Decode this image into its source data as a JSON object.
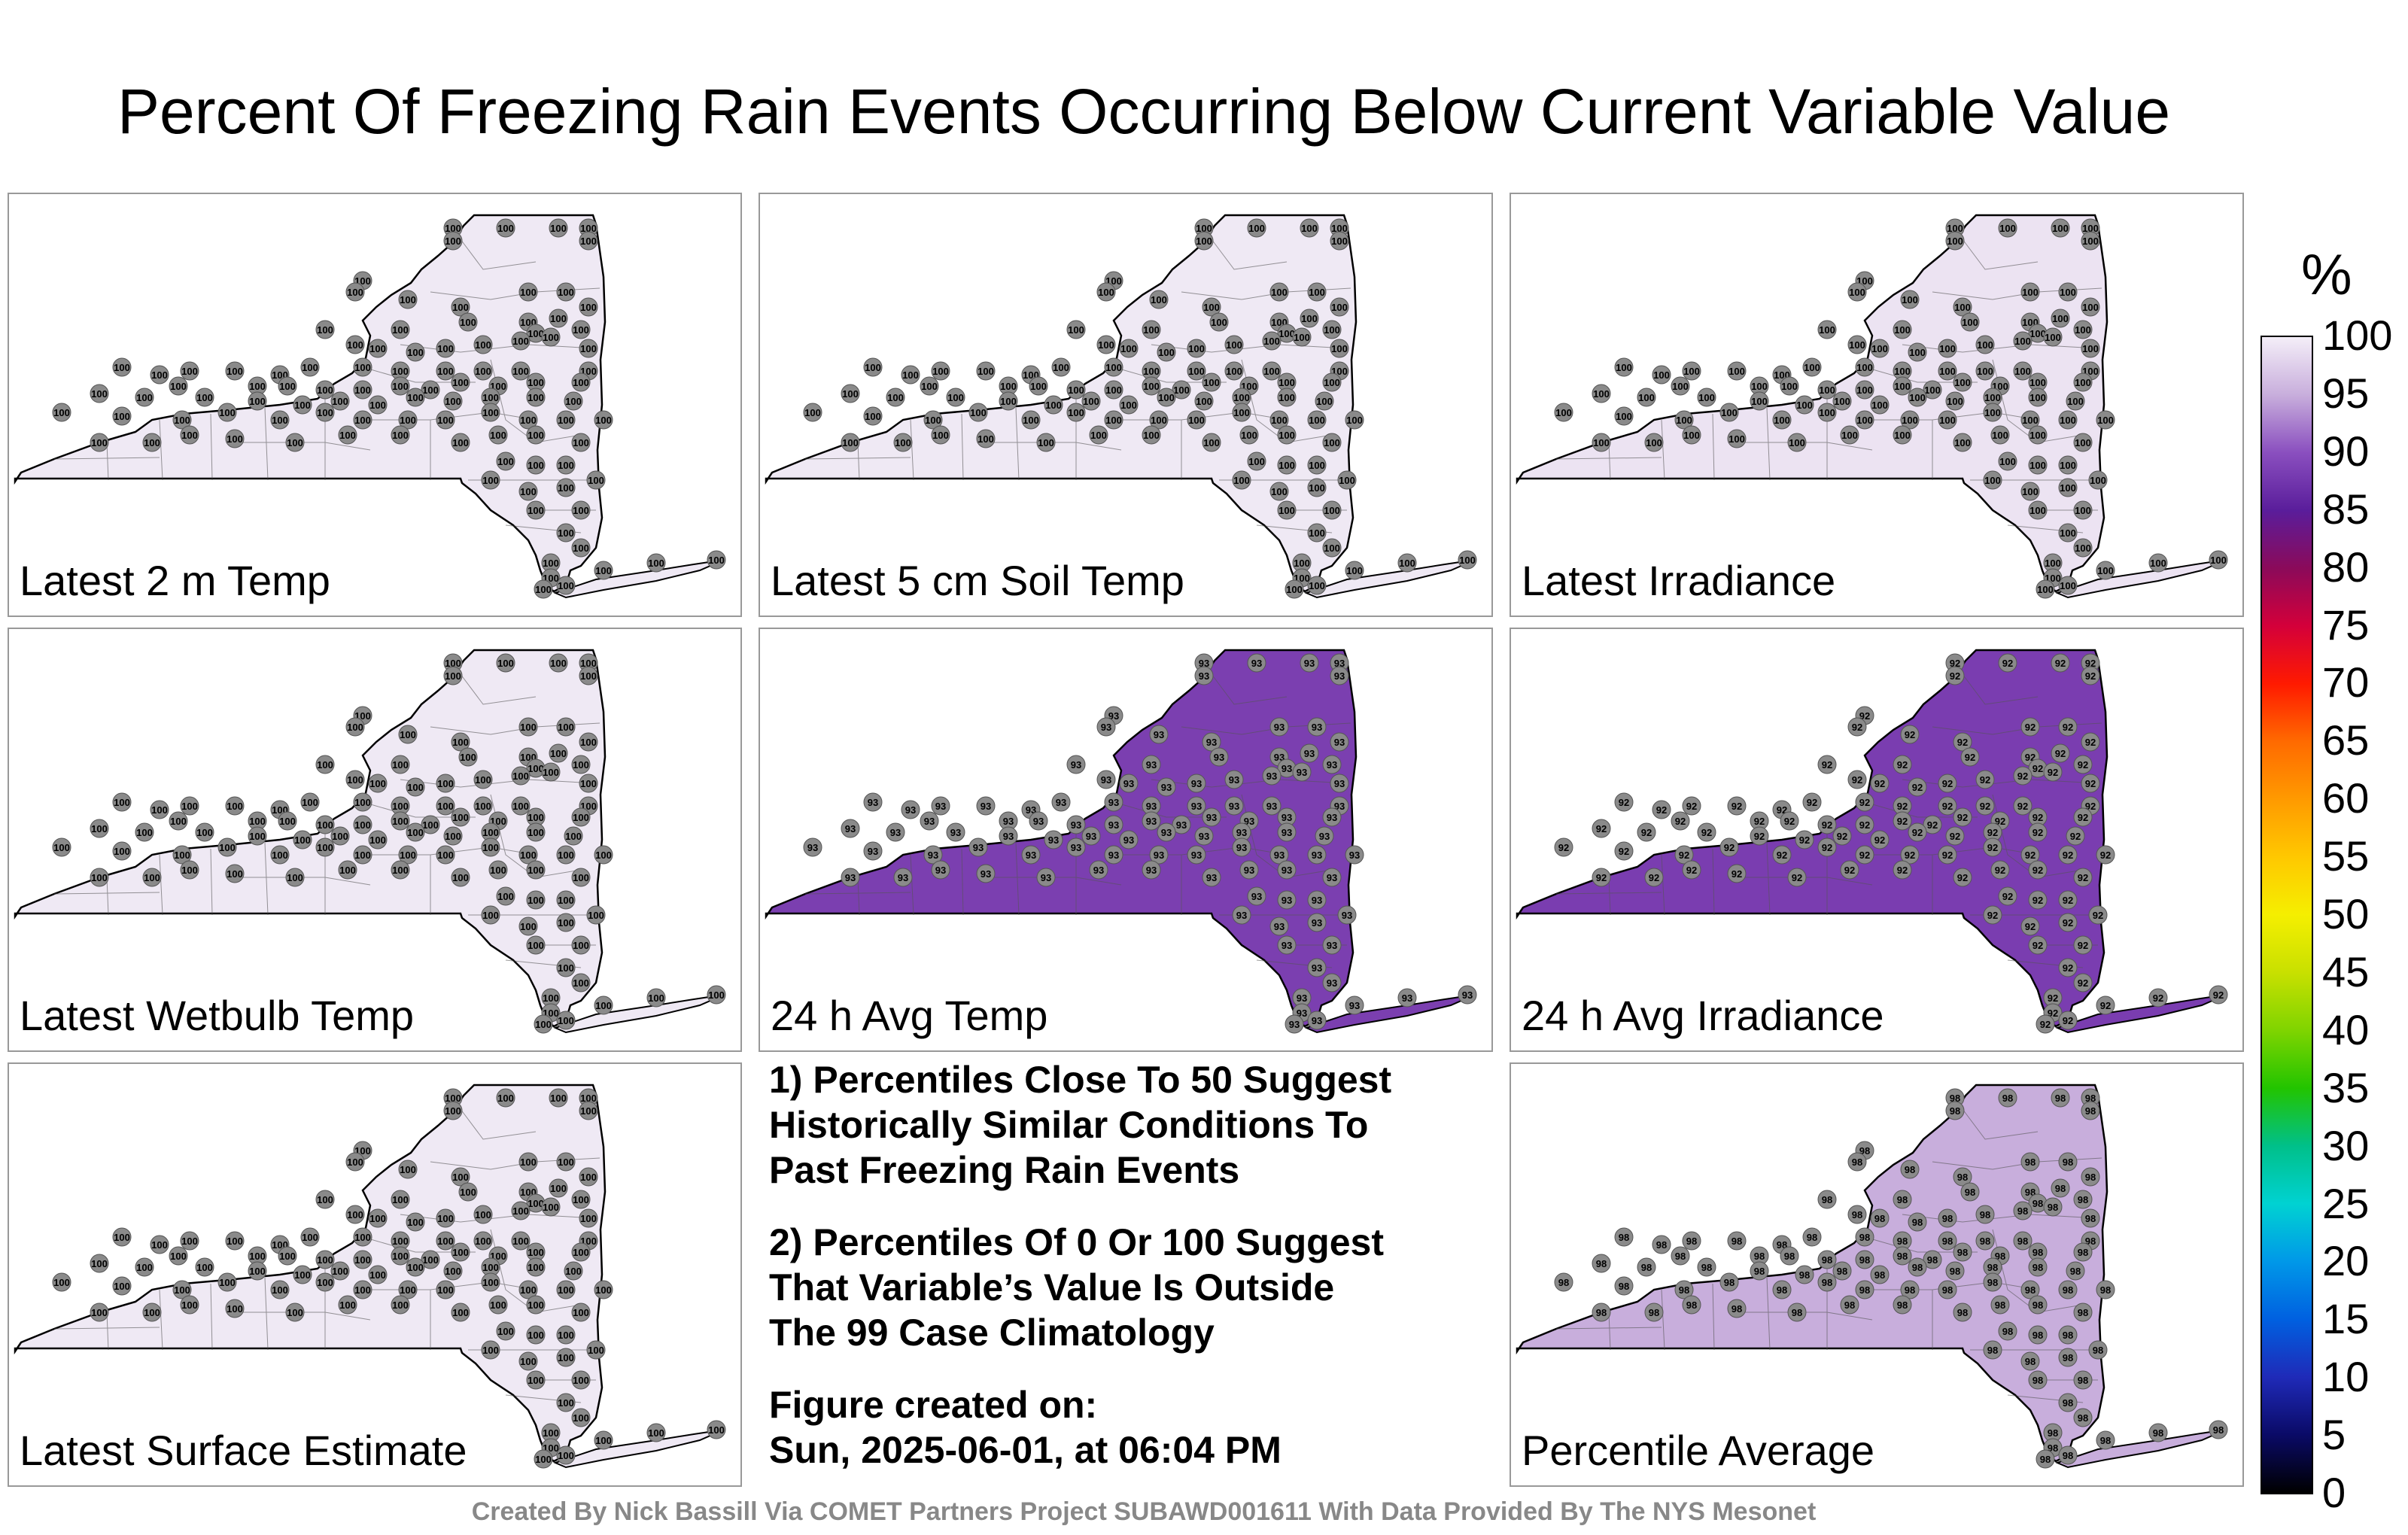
{
  "title": "Percent Of Freezing Rain Events Occurring Below Current Variable Value",
  "panels": [
    {
      "label": "Latest 2 m Temp",
      "fill": "#efe9f4",
      "value": "100"
    },
    {
      "label": "Latest 5 cm Soil Temp",
      "fill": "#efe9f4",
      "value": "100"
    },
    {
      "label": "Latest Irradiance",
      "fill": "#ece3f2",
      "value": "100"
    },
    {
      "label": "Latest Wetbulb Temp",
      "fill": "#efe9f4",
      "value": "100"
    },
    {
      "label": "24 h Avg Temp",
      "fill": "#7b3fb0",
      "value": "93"
    },
    {
      "label": "24 h Avg Irradiance",
      "fill": "#7a3db0",
      "value": "92"
    },
    {
      "label": "Latest Surface Estimate",
      "fill": "#efe9f4",
      "value": "100"
    },
    {
      "label": "Percentile Average",
      "fill": "#c8aedc",
      "value": "98"
    }
  ],
  "notes": {
    "note1": "1) Percentiles Close To 50 Suggest\nHistorically Similar Conditions To\nPast Freezing Rain Events",
    "note2": "2) Percentiles Of 0 Or 100 Suggest\nThat Variable’s Value Is Outside\nThe 99 Case Climatology",
    "note3": "Figure created on:\nSun, 2025-06-01, at 06:04 PM"
  },
  "footer": "Created By Nick Bassill Via COMET Partners Project SUBAWD001611 With Data Provided By The NYS Mesonet",
  "colorbar": {
    "unit": "%",
    "ticks": [
      "100",
      "95",
      "90",
      "85",
      "80",
      "75",
      "70",
      "65",
      "60",
      "55",
      "50",
      "45",
      "40",
      "35",
      "30",
      "25",
      "20",
      "15",
      "10",
      "5",
      "0"
    ]
  }
}
